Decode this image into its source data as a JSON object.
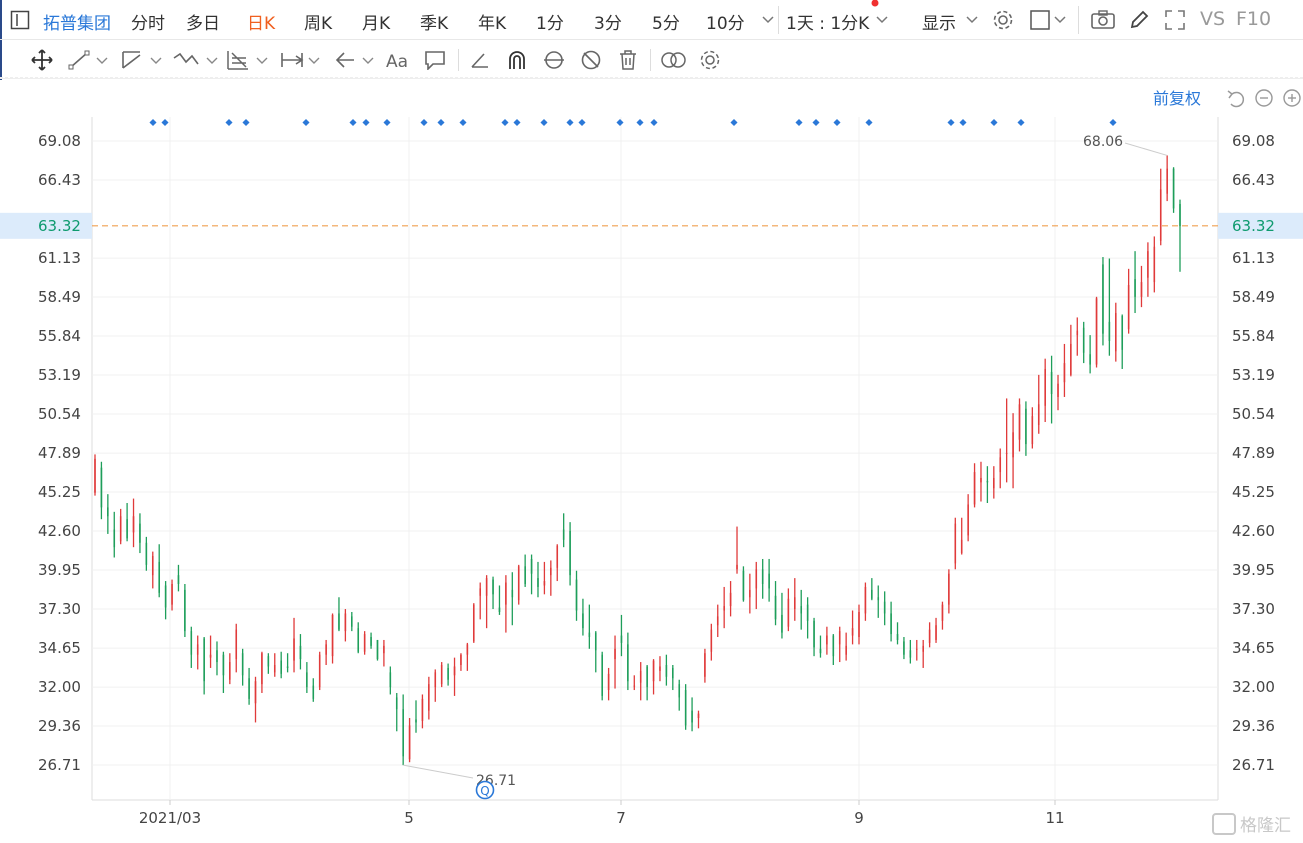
{
  "toolbar": {
    "stock_name": "拓普集团",
    "tabs": [
      "分时",
      "多日",
      "日K",
      "周K",
      "月K",
      "季K",
      "年K",
      "1分",
      "3分",
      "5分",
      "10分"
    ],
    "active_tab": "日K",
    "interval_label": "1天 : 1分K",
    "display_label": "显示",
    "vs_label": "VS",
    "f10_label": "F10"
  },
  "chart_controls": {
    "adjust_label": "前复权"
  },
  "watermark": "格隆汇",
  "colors": {
    "up": "#e03a3a",
    "down": "#1e9e5a",
    "accent": "#f06020",
    "blue": "#2a78d8",
    "last_price_line": "#f0a050",
    "last_price_bg": "#dcebfb",
    "last_price_text": "#0e9a6e"
  },
  "chart_data": {
    "type": "candlestick",
    "title": "",
    "y_ticks": [
      69.08,
      66.43,
      63.32,
      61.13,
      58.49,
      55.84,
      53.19,
      50.54,
      47.89,
      45.25,
      42.6,
      39.95,
      37.3,
      34.65,
      32.0,
      29.36,
      26.71
    ],
    "y_tick_labels": [
      "69.08",
      "66.43",
      "63.32",
      "61.13",
      "58.49",
      "55.84",
      "53.19",
      "50.54",
      "47.89",
      "45.25",
      "42.60",
      "39.95",
      "37.30",
      "34.65",
      "32.00",
      "29.36",
      "26.71"
    ],
    "ylim": [
      26.71,
      69.08
    ],
    "x_tick_labels": [
      "2021/03",
      "5",
      "7",
      "9",
      "11"
    ],
    "last_price": 63.32,
    "last_price_label": "63.32",
    "max_price_label": "68.06",
    "min_price_label": "26.71",
    "grid": true,
    "series": [
      {
        "values": [
          [
            45.2,
            47.8,
            45.0,
            47.5
          ],
          [
            46.9,
            47.3,
            43.4,
            44.2
          ],
          [
            44.2,
            45.1,
            42.4,
            43.6
          ],
          [
            42.7,
            43.9,
            40.8,
            41.5
          ],
          [
            41.9,
            44.1,
            41.7,
            43.6
          ],
          [
            43.4,
            44.5,
            41.9,
            42.1
          ],
          [
            42.5,
            44.8,
            41.5,
            43.6
          ],
          [
            43.1,
            43.8,
            41.1,
            41.8
          ],
          [
            41.8,
            42.2,
            39.9,
            40.3
          ],
          [
            39.6,
            41.2,
            38.7,
            40.9
          ],
          [
            40.5,
            41.7,
            38.1,
            38.4
          ],
          [
            38.9,
            39.2,
            36.6,
            37.4
          ],
          [
            37.6,
            39.3,
            37.2,
            39.0
          ],
          [
            39.6,
            40.3,
            38.5,
            39.0
          ],
          [
            38.6,
            39.0,
            35.4,
            35.8
          ],
          [
            35.8,
            36.1,
            33.3,
            34.2
          ],
          [
            34.2,
            35.5,
            33.2,
            34.9
          ],
          [
            35.3,
            35.4,
            31.5,
            32.4
          ],
          [
            34.0,
            35.5,
            33.3,
            34.2
          ],
          [
            34.5,
            35.1,
            32.8,
            33.7
          ],
          [
            34.2,
            34.4,
            31.6,
            32.8
          ],
          [
            32.5,
            34.3,
            32.2,
            33.7
          ],
          [
            33.9,
            36.3,
            33.0,
            35.9
          ],
          [
            34.3,
            34.6,
            32.1,
            32.8
          ],
          [
            32.6,
            33.3,
            30.8,
            31.2
          ],
          [
            30.9,
            32.7,
            29.6,
            32.4
          ],
          [
            32.2,
            34.4,
            31.6,
            34.3
          ],
          [
            34.1,
            34.3,
            32.9,
            33.4
          ],
          [
            33.0,
            34.3,
            32.7,
            33.5
          ],
          [
            33.8,
            34.4,
            32.6,
            32.9
          ],
          [
            33.4,
            34.3,
            33.0,
            33.3
          ],
          [
            33.8,
            36.7,
            33.0,
            35.3
          ],
          [
            34.8,
            35.6,
            33.2,
            33.9
          ],
          [
            33.0,
            33.7,
            31.6,
            32.0
          ],
          [
            32.1,
            32.6,
            31.0,
            31.2
          ],
          [
            32.0,
            34.4,
            31.8,
            34.2
          ],
          [
            34.2,
            35.2,
            33.5,
            34.9
          ],
          [
            34.1,
            37.0,
            33.6,
            36.9
          ],
          [
            37.0,
            38.1,
            35.8,
            35.9
          ],
          [
            35.8,
            37.3,
            35.1,
            37.0
          ],
          [
            36.8,
            37.1,
            35.8,
            36.1
          ],
          [
            36.0,
            36.4,
            34.3,
            34.4
          ],
          [
            34.4,
            35.8,
            34.2,
            35.6
          ],
          [
            35.4,
            35.7,
            34.6,
            34.8
          ],
          [
            35.2,
            35.2,
            33.8,
            33.9
          ],
          [
            34.3,
            35.2,
            33.4,
            34.8
          ],
          [
            33.0,
            33.4,
            31.5,
            32.0
          ],
          [
            31.3,
            31.6,
            29.0,
            30.5
          ],
          [
            30.5,
            31.5,
            26.7,
            27.3
          ],
          [
            27.1,
            29.9,
            26.9,
            29.4
          ],
          [
            29.8,
            31.1,
            28.9,
            29.6
          ],
          [
            29.7,
            31.5,
            29.2,
            31.2
          ],
          [
            30.4,
            32.7,
            29.8,
            32.2
          ],
          [
            32.0,
            33.2,
            31.0,
            33.0
          ],
          [
            32.2,
            33.7,
            32.0,
            33.5
          ],
          [
            33.3,
            33.6,
            32.1,
            32.5
          ],
          [
            32.8,
            34.0,
            31.4,
            33.4
          ],
          [
            33.5,
            34.3,
            33.1,
            34.2
          ],
          [
            34.2,
            35.0,
            33.1,
            34.9
          ],
          [
            35.1,
            37.7,
            35.0,
            37.6
          ],
          [
            38.2,
            39.1,
            36.6,
            38.7
          ],
          [
            38.2,
            39.6,
            36.0,
            39.4
          ],
          [
            39.3,
            39.5,
            37.3,
            38.3
          ],
          [
            37.4,
            38.9,
            36.9,
            37.1
          ],
          [
            37.6,
            39.6,
            35.7,
            39.1
          ],
          [
            38.6,
            39.8,
            36.2,
            38.1
          ],
          [
            37.9,
            40.3,
            37.6,
            40.2
          ],
          [
            40.2,
            41.0,
            38.8,
            39.0
          ],
          [
            40.7,
            41.0,
            38.3,
            39.7
          ],
          [
            39.4,
            40.5,
            38.1,
            38.8
          ],
          [
            38.9,
            40.5,
            38.3,
            39.2
          ],
          [
            39.6,
            40.6,
            38.2,
            40.1
          ],
          [
            40.1,
            41.7,
            39.2,
            41.6
          ],
          [
            42.7,
            43.8,
            41.5,
            42.0
          ],
          [
            42.6,
            43.2,
            38.9,
            39.6
          ],
          [
            39.3,
            39.9,
            36.5,
            37.2
          ],
          [
            37.0,
            38.0,
            35.5,
            36.0
          ],
          [
            35.7,
            37.6,
            34.6,
            35.4
          ],
          [
            35.7,
            35.8,
            33.0,
            34.5
          ],
          [
            34.2,
            34.4,
            31.1,
            31.4
          ],
          [
            31.8,
            33.3,
            31.1,
            32.9
          ],
          [
            33.9,
            35.5,
            31.9,
            34.6
          ],
          [
            35.5,
            36.9,
            34.1,
            35.0
          ],
          [
            34.9,
            35.7,
            31.8,
            32.4
          ],
          [
            32.1,
            32.8,
            31.8,
            32.1
          ],
          [
            32.3,
            33.7,
            31.1,
            33.1
          ],
          [
            33.4,
            33.5,
            31.1,
            32.0
          ],
          [
            32.4,
            33.9,
            31.5,
            33.8
          ],
          [
            33.1,
            34.1,
            32.4,
            33.4
          ],
          [
            33.5,
            34.2,
            32.1,
            32.7
          ],
          [
            33.3,
            33.5,
            31.8,
            32.6
          ],
          [
            32.2,
            32.5,
            30.4,
            31.3
          ],
          [
            31.8,
            32.2,
            29.1,
            29.4
          ],
          [
            30.4,
            31.3,
            29.0,
            29.6
          ],
          [
            29.9,
            30.4,
            29.2,
            30.2
          ],
          [
            32.7,
            34.6,
            32.3,
            34.3
          ],
          [
            34.4,
            36.3,
            33.8,
            35.9
          ],
          [
            36.2,
            37.6,
            35.4,
            36.8
          ],
          [
            37.2,
            38.8,
            36.0,
            37.5
          ],
          [
            37.5,
            39.2,
            36.8,
            38.4
          ],
          [
            40.0,
            42.9,
            39.7,
            40.3
          ],
          [
            39.9,
            40.2,
            37.8,
            37.9
          ],
          [
            38.1,
            39.7,
            37.0,
            38.6
          ],
          [
            38.7,
            40.5,
            37.3,
            40.0
          ],
          [
            40.0,
            40.7,
            38.0,
            39.0
          ],
          [
            39.7,
            40.7,
            37.8,
            38.7
          ],
          [
            38.2,
            39.2,
            36.2,
            36.6
          ],
          [
            36.9,
            38.4,
            35.3,
            35.7
          ],
          [
            36.1,
            38.7,
            35.8,
            38.0
          ],
          [
            37.3,
            39.4,
            36.5,
            38.1
          ],
          [
            37.5,
            38.6,
            35.9,
            37.0
          ],
          [
            37.6,
            38.1,
            35.3,
            36.5
          ],
          [
            36.5,
            36.7,
            34.1,
            34.7
          ],
          [
            34.6,
            35.5,
            34.0,
            34.3
          ],
          [
            34.9,
            36.1,
            34.2,
            35.5
          ],
          [
            35.5,
            35.6,
            33.5,
            34.1
          ],
          [
            34.9,
            36.1,
            33.7,
            35.8
          ],
          [
            34.2,
            35.7,
            33.8,
            34.8
          ],
          [
            35.5,
            37.2,
            34.9,
            36.0
          ],
          [
            35.4,
            37.6,
            34.9,
            37.1
          ],
          [
            37.0,
            39.1,
            36.5,
            38.8
          ],
          [
            38.6,
            39.4,
            37.9,
            38.0
          ],
          [
            38.1,
            38.9,
            36.7,
            37.9
          ],
          [
            37.8,
            38.5,
            36.2,
            37.0
          ],
          [
            37.0,
            37.8,
            35.1,
            35.6
          ],
          [
            35.6,
            36.4,
            34.9,
            35.2
          ],
          [
            35.1,
            35.4,
            33.9,
            34.2
          ],
          [
            34.5,
            35.2,
            33.6,
            34.0
          ],
          [
            34.6,
            35.2,
            33.8,
            34.6
          ],
          [
            34.4,
            35.2,
            33.3,
            34.8
          ],
          [
            35.0,
            36.4,
            34.7,
            35.9
          ],
          [
            35.2,
            36.7,
            35.0,
            36.2
          ],
          [
            36.5,
            37.8,
            35.9,
            37.6
          ],
          [
            37.6,
            40.0,
            37.0,
            39.7
          ],
          [
            40.4,
            43.5,
            40.0,
            43.1
          ],
          [
            41.1,
            43.5,
            41.0,
            42.0
          ],
          [
            42.3,
            45.1,
            41.9,
            44.4
          ],
          [
            44.4,
            47.2,
            44.2,
            46.6
          ],
          [
            45.9,
            47.3,
            44.6,
            46.2
          ],
          [
            46.0,
            47.0,
            44.5,
            45.9
          ],
          [
            45.5,
            47.0,
            44.8,
            46.2
          ],
          [
            46.6,
            48.2,
            45.5,
            47.6
          ],
          [
            47.9,
            51.6,
            45.9,
            47.9
          ],
          [
            47.6,
            50.6,
            45.5,
            49.3
          ],
          [
            48.8,
            51.6,
            48.0,
            51.2
          ],
          [
            50.9,
            51.4,
            47.7,
            48.5
          ],
          [
            48.5,
            51.0,
            48.2,
            50.4
          ],
          [
            49.8,
            53.2,
            49.2,
            51.2
          ],
          [
            51.1,
            54.3,
            50.0,
            53.6
          ],
          [
            53.4,
            54.5,
            49.9,
            51.9
          ],
          [
            51.7,
            53.2,
            50.8,
            52.6
          ],
          [
            52.7,
            55.3,
            51.7,
            54.0
          ],
          [
            53.2,
            56.6,
            53.1,
            55.3
          ],
          [
            55.9,
            57.1,
            54.5,
            56.2
          ],
          [
            56.4,
            56.8,
            54.0,
            54.7
          ],
          [
            54.6,
            55.9,
            53.3,
            53.9
          ],
          [
            53.9,
            58.5,
            53.7,
            58.4
          ],
          [
            60.7,
            61.2,
            55.2,
            56.0
          ],
          [
            56.8,
            61.1,
            54.5,
            55.5
          ],
          [
            54.8,
            58.1,
            54.1,
            57.4
          ],
          [
            57.2,
            57.3,
            53.6,
            54.9
          ],
          [
            56.3,
            60.4,
            56.0,
            59.3
          ],
          [
            59.7,
            61.6,
            57.4,
            58.5
          ],
          [
            58.5,
            60.6,
            57.8,
            59.5
          ],
          [
            59.8,
            62.2,
            58.5,
            61.6
          ],
          [
            59.5,
            62.6,
            58.8,
            61.9
          ],
          [
            62.3,
            67.2,
            62.0,
            65.8
          ],
          [
            65.5,
            68.1,
            65.0,
            67.2
          ],
          [
            67.2,
            67.3,
            64.2,
            64.5
          ],
          [
            64.8,
            65.1,
            60.2,
            63.3
          ]
        ]
      }
    ],
    "event_markers": 30
  }
}
